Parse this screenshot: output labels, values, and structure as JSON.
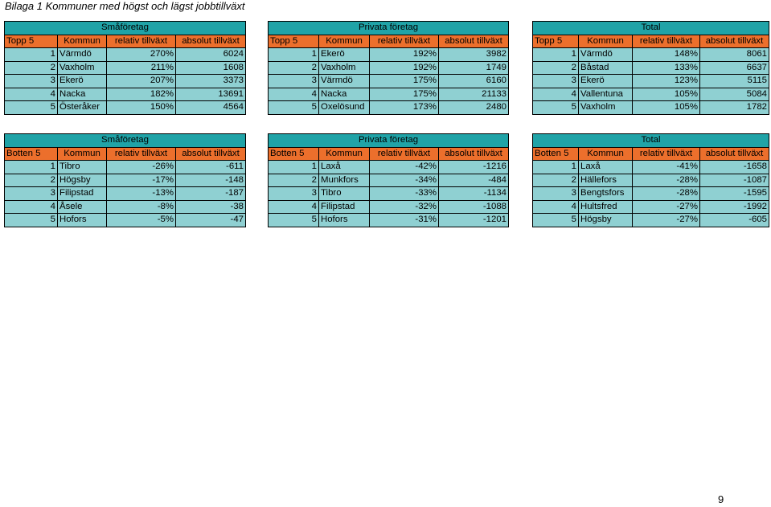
{
  "title": "Bilaga 1 Kommuner med högst och lägst jobbtillväxt",
  "page_number": "9",
  "top": {
    "rank_header": "Topp 5",
    "columns": {
      "kommun": "Kommun",
      "relativ": "relativ tillväxt",
      "absolut": "absolut tillväxt"
    },
    "groups": [
      {
        "name": "Småföretag",
        "rows": [
          {
            "rank": "1",
            "kommun": "Värmdö",
            "relativ": "270%",
            "absolut": "6024"
          },
          {
            "rank": "2",
            "kommun": "Vaxholm",
            "relativ": "211%",
            "absolut": "1608"
          },
          {
            "rank": "3",
            "kommun": "Ekerö",
            "relativ": "207%",
            "absolut": "3373"
          },
          {
            "rank": "4",
            "kommun": "Nacka",
            "relativ": "182%",
            "absolut": "13691"
          },
          {
            "rank": "5",
            "kommun": "Österåker",
            "relativ": "150%",
            "absolut": "4564"
          }
        ]
      },
      {
        "name": "Privata företag",
        "rows": [
          {
            "rank": "1",
            "kommun": "Ekerö",
            "relativ": "192%",
            "absolut": "3982"
          },
          {
            "rank": "2",
            "kommun": "Vaxholm",
            "relativ": "192%",
            "absolut": "1749"
          },
          {
            "rank": "3",
            "kommun": "Värmdö",
            "relativ": "175%",
            "absolut": "6160"
          },
          {
            "rank": "4",
            "kommun": "Nacka",
            "relativ": "175%",
            "absolut": "21133"
          },
          {
            "rank": "5",
            "kommun": "Oxelösund",
            "relativ": "173%",
            "absolut": "2480"
          }
        ]
      },
      {
        "name": "Total",
        "rows": [
          {
            "rank": "1",
            "kommun": "Värmdö",
            "relativ": "148%",
            "absolut": "8061"
          },
          {
            "rank": "2",
            "kommun": "Båstad",
            "relativ": "133%",
            "absolut": "6637"
          },
          {
            "rank": "3",
            "kommun": "Ekerö",
            "relativ": "123%",
            "absolut": "5115"
          },
          {
            "rank": "4",
            "kommun": "Vallentuna",
            "relativ": "105%",
            "absolut": "5084"
          },
          {
            "rank": "5",
            "kommun": "Vaxholm",
            "relativ": "105%",
            "absolut": "1782"
          }
        ]
      }
    ]
  },
  "bottom": {
    "rank_header": "Botten 5",
    "columns": {
      "kommun": "Kommun",
      "relativ": "relativ tillväxt",
      "absolut": "absolut tillväxt"
    },
    "groups": [
      {
        "name": "Småföretag",
        "rows": [
          {
            "rank": "1",
            "kommun": "Tibro",
            "relativ": "-26%",
            "absolut": "-611"
          },
          {
            "rank": "2",
            "kommun": "Högsby",
            "relativ": "-17%",
            "absolut": "-148"
          },
          {
            "rank": "3",
            "kommun": "Filipstad",
            "relativ": "-13%",
            "absolut": "-187"
          },
          {
            "rank": "4",
            "kommun": "Åsele",
            "relativ": "-8%",
            "absolut": "-38"
          },
          {
            "rank": "5",
            "kommun": "Hofors",
            "relativ": "-5%",
            "absolut": "-47"
          }
        ]
      },
      {
        "name": "Privata företag",
        "rows": [
          {
            "rank": "1",
            "kommun": "Laxå",
            "relativ": "-42%",
            "absolut": "-1216"
          },
          {
            "rank": "2",
            "kommun": "Munkfors",
            "relativ": "-34%",
            "absolut": "-484"
          },
          {
            "rank": "3",
            "kommun": "Tibro",
            "relativ": "-33%",
            "absolut": "-1134"
          },
          {
            "rank": "4",
            "kommun": "Filipstad",
            "relativ": "-32%",
            "absolut": "-1088"
          },
          {
            "rank": "5",
            "kommun": "Hofors",
            "relativ": "-31%",
            "absolut": "-1201"
          }
        ]
      },
      {
        "name": "Total",
        "rows": [
          {
            "rank": "1",
            "kommun": "Laxå",
            "relativ": "-41%",
            "absolut": "-1658"
          },
          {
            "rank": "2",
            "kommun": "Hällefors",
            "relativ": "-28%",
            "absolut": "-1087"
          },
          {
            "rank": "3",
            "kommun": "Bengtsfors",
            "relativ": "-28%",
            "absolut": "-1595"
          },
          {
            "rank": "4",
            "kommun": "Hultsfred",
            "relativ": "-27%",
            "absolut": "-1992"
          },
          {
            "rank": "5",
            "kommun": "Högsby",
            "relativ": "-27%",
            "absolut": "-605"
          }
        ]
      }
    ]
  }
}
